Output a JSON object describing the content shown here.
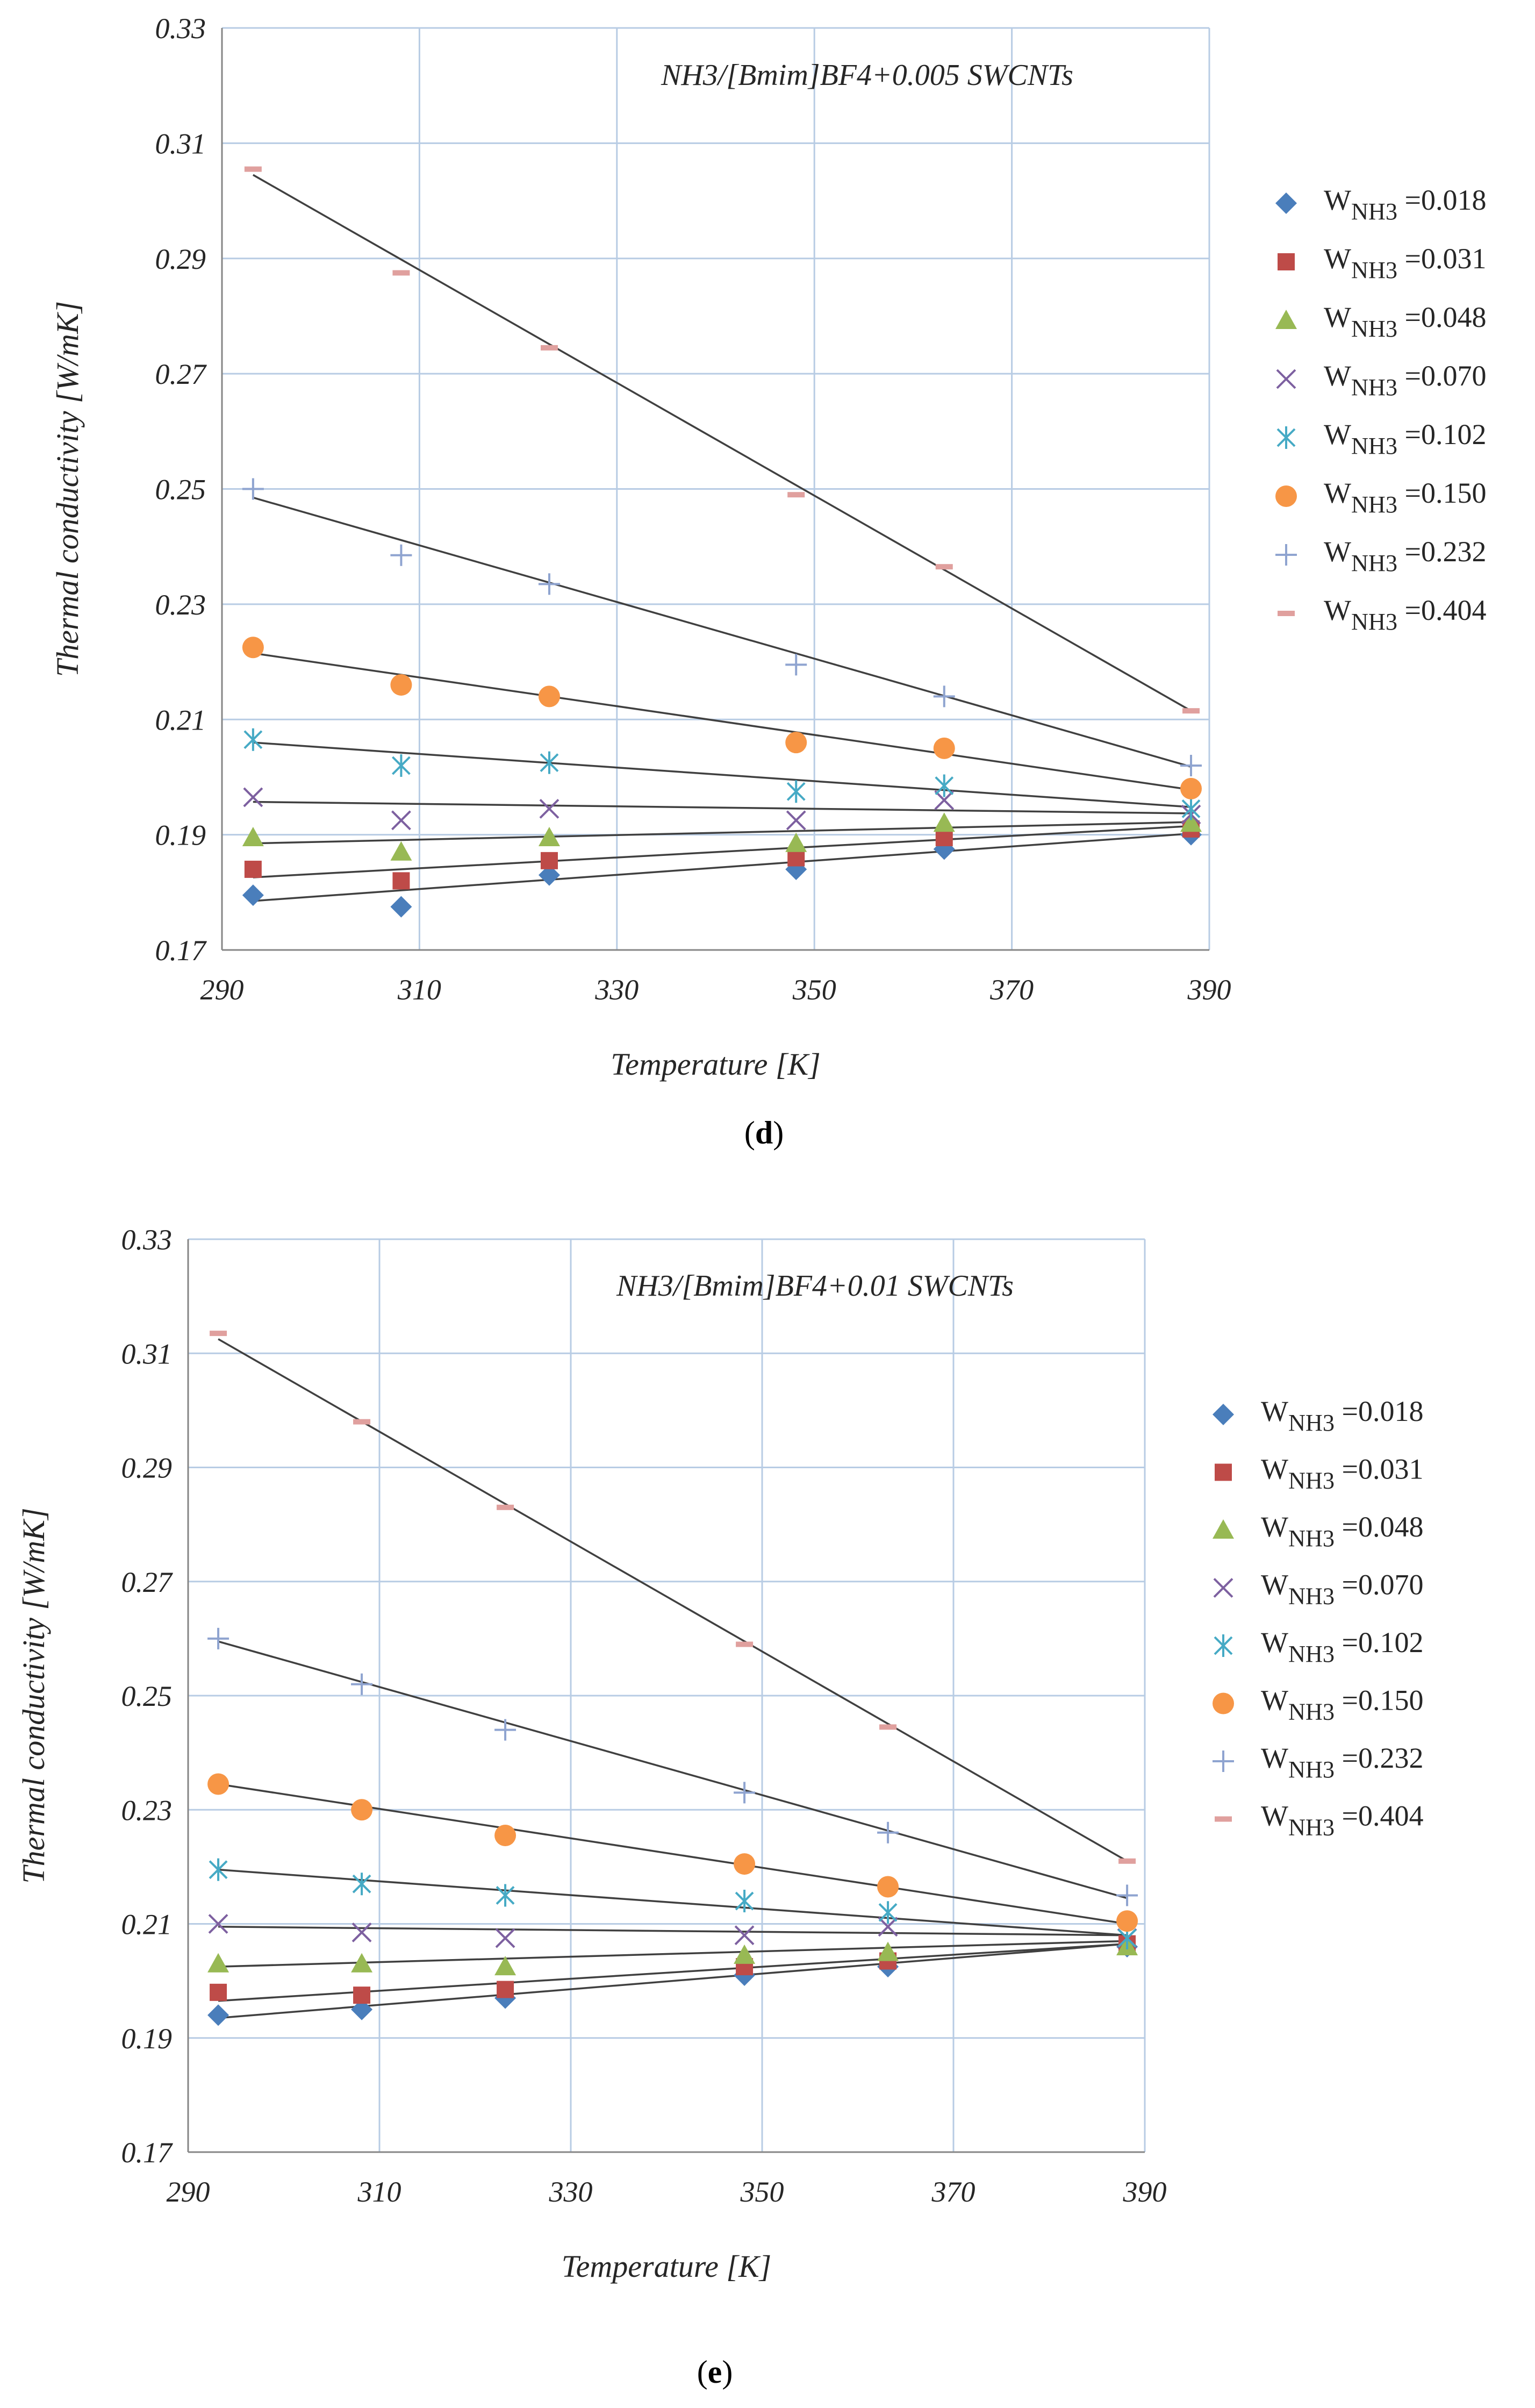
{
  "chart_data": [
    {
      "type": "scatter",
      "title": "NH3/[Bmim]BF4+0.005 SWCNTs",
      "xlabel": "Temperature [K]",
      "ylabel": "Thermal conductivity [W/mK]",
      "xlim": [
        290,
        390
      ],
      "ylim": [
        0.17,
        0.33
      ],
      "xticks": [
        "290",
        "310",
        "330",
        "350",
        "370",
        "390"
      ],
      "yticks": [
        "0.17",
        "0.19",
        "0.21",
        "0.23",
        "0.25",
        "0.27",
        "0.29",
        "0.31",
        "0.33"
      ],
      "panel_label": "d",
      "grid": true,
      "legend_position": "right",
      "x": [
        293.15,
        308.15,
        323.15,
        348.15,
        363.15,
        388.15
      ],
      "series": [
        {
          "name": "W NH3 =0.018",
          "w_label": "W",
          "sub": "NH3",
          "value_text": " =0.018",
          "marker": "diamond",
          "color": "#4a7ebb",
          "values": [
            0.1795,
            0.1775,
            0.183,
            0.184,
            0.1875,
            0.19
          ]
        },
        {
          "name": "W NH3 =0.031",
          "w_label": "W",
          "sub": "NH3",
          "value_text": " =0.031",
          "marker": "square",
          "color": "#be4b48",
          "values": [
            0.184,
            0.182,
            0.1855,
            0.186,
            0.1895,
            0.191
          ]
        },
        {
          "name": "W NH3 =0.048",
          "w_label": "W",
          "sub": "NH3",
          "value_text": " =0.048",
          "marker": "triangle",
          "color": "#98b954",
          "values": [
            0.1895,
            0.187,
            0.1895,
            0.1885,
            0.192,
            0.192
          ]
        },
        {
          "name": "W NH3 =0.070",
          "w_label": "W",
          "sub": "NH3",
          "value_text": " =0.070",
          "marker": "x",
          "color": "#7d60a0",
          "values": [
            0.1965,
            0.1925,
            0.1945,
            0.1925,
            0.196,
            0.1935
          ]
        },
        {
          "name": "W NH3 =0.102",
          "w_label": "W",
          "sub": "NH3",
          "value_text": " =0.102",
          "marker": "asterisk",
          "color": "#46aac5",
          "values": [
            0.2065,
            0.202,
            0.2025,
            0.1975,
            0.1985,
            0.1945
          ]
        },
        {
          "name": "W NH3 =0.150",
          "w_label": "W",
          "sub": "NH3",
          "value_text": " =0.150",
          "marker": "circle",
          "color": "#f79646",
          "values": [
            0.2225,
            0.216,
            0.214,
            0.206,
            0.205,
            0.198
          ]
        },
        {
          "name": "W NH3 =0.232",
          "w_label": "W",
          "sub": "NH3",
          "value_text": " =0.232",
          "marker": "plus",
          "color": "#8fa4d0",
          "values": [
            0.25,
            0.2385,
            0.2335,
            0.2195,
            0.214,
            0.202
          ]
        },
        {
          "name": "W NH3 =0.404",
          "w_label": "W",
          "sub": "NH3",
          "value_text": " =0.404",
          "marker": "dash",
          "color": "#e0a09e",
          "values": [
            0.3055,
            0.2875,
            0.2745,
            0.249,
            0.2365,
            0.2115
          ]
        }
      ],
      "fit_lines": [
        [
          0.1785,
          0.1902
        ],
        [
          0.1826,
          0.1915
        ],
        [
          0.1885,
          0.1922
        ],
        [
          0.1957,
          0.1937
        ],
        [
          0.206,
          0.1948
        ],
        [
          0.2215,
          0.1978
        ],
        [
          0.2485,
          0.2018
        ],
        [
          0.3045,
          0.2115
        ]
      ]
    },
    {
      "type": "scatter",
      "title": "NH3/[Bmim]BF4+0.01 SWCNTs",
      "xlabel": "Temperature [K]",
      "ylabel": "Thermal conductivity [W/mK]",
      "xlim": [
        290,
        390
      ],
      "ylim": [
        0.17,
        0.33
      ],
      "xticks": [
        "290",
        "310",
        "330",
        "350",
        "370",
        "390"
      ],
      "yticks": [
        "0.17",
        "0.19",
        "0.21",
        "0.23",
        "0.25",
        "0.27",
        "0.29",
        "0.31",
        "0.33"
      ],
      "panel_label": "e",
      "grid": true,
      "legend_position": "right",
      "x": [
        293.15,
        308.15,
        323.15,
        348.15,
        363.15,
        388.15
      ],
      "series": [
        {
          "name": "W NH3 =0.018",
          "w_label": "W",
          "sub": "NH3",
          "value_text": " =0.018",
          "marker": "diamond",
          "color": "#4a7ebb",
          "values": [
            0.194,
            0.195,
            0.197,
            0.201,
            0.2025,
            0.206
          ]
        },
        {
          "name": "W NH3 =0.031",
          "w_label": "W",
          "sub": "NH3",
          "value_text": " =0.031",
          "marker": "square",
          "color": "#be4b48",
          "values": [
            0.198,
            0.1975,
            0.1985,
            0.2025,
            0.2035,
            0.2065
          ]
        },
        {
          "name": "W NH3 =0.048",
          "w_label": "W",
          "sub": "NH3",
          "value_text": " =0.048",
          "marker": "triangle",
          "color": "#98b954",
          "values": [
            0.203,
            0.203,
            0.2025,
            0.2045,
            0.205,
            0.206
          ]
        },
        {
          "name": "W NH3 =0.070",
          "w_label": "W",
          "sub": "NH3",
          "value_text": " =0.070",
          "marker": "x",
          "color": "#7d60a0",
          "values": [
            0.21,
            0.2085,
            0.2075,
            0.208,
            0.2095,
            0.2075
          ]
        },
        {
          "name": "W NH3 =0.102",
          "w_label": "W",
          "sub": "NH3",
          "value_text": " =0.102",
          "marker": "asterisk",
          "color": "#46aac5",
          "values": [
            0.2195,
            0.217,
            0.215,
            0.214,
            0.212,
            0.2075
          ]
        },
        {
          "name": "W NH3 =0.150",
          "w_label": "W",
          "sub": "NH3",
          "value_text": " =0.150",
          "marker": "circle",
          "color": "#f79646",
          "values": [
            0.2345,
            0.23,
            0.2255,
            0.2205,
            0.2165,
            0.2105
          ]
        },
        {
          "name": "W NH3 =0.232",
          "w_label": "W",
          "sub": "NH3",
          "value_text": " =0.232",
          "marker": "plus",
          "color": "#8fa4d0",
          "values": [
            0.26,
            0.252,
            0.244,
            0.233,
            0.226,
            0.215
          ]
        },
        {
          "name": "W NH3 =0.404",
          "w_label": "W",
          "sub": "NH3",
          "value_text": " =0.404",
          "marker": "dash",
          "color": "#e0a09e",
          "values": [
            0.3135,
            0.298,
            0.283,
            0.259,
            0.2445,
            0.221
          ]
        }
      ],
      "fit_lines": [
        [
          0.1935,
          0.2065
        ],
        [
          0.1965,
          0.2065
        ],
        [
          0.2025,
          0.207
        ],
        [
          0.2095,
          0.208
        ],
        [
          0.2195,
          0.208
        ],
        [
          0.2345,
          0.21
        ],
        [
          0.2595,
          0.2145
        ],
        [
          0.3125,
          0.221
        ]
      ]
    }
  ]
}
